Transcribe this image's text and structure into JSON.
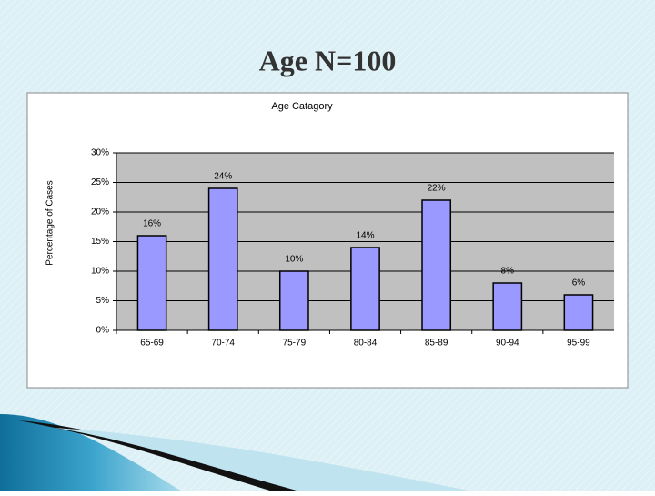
{
  "slide": {
    "title": "Age N=100"
  },
  "chart_data": {
    "type": "bar",
    "title": "Age Catagory",
    "y_label": "Percentage of Cases",
    "categories": [
      "65-69",
      "70-74",
      "75-79",
      "80-84",
      "85-89",
      "90-94",
      "95-99"
    ],
    "values": [
      16,
      24,
      10,
      14,
      22,
      8,
      6
    ],
    "value_labels": [
      "16%",
      "24%",
      "10%",
      "14%",
      "22%",
      "8%",
      "6%"
    ],
    "color": "#9999ff",
    "ylim": [
      0,
      30
    ],
    "yticks": [
      {
        "value": 0,
        "label": "0%"
      },
      {
        "value": 5,
        "label": "5%"
      },
      {
        "value": 10,
        "label": "10%"
      },
      {
        "value": 15,
        "label": "15%"
      },
      {
        "value": 20,
        "label": "20%"
      },
      {
        "value": 25,
        "label": "25%"
      },
      {
        "value": 30,
        "label": "30%"
      }
    ],
    "grid": true
  }
}
